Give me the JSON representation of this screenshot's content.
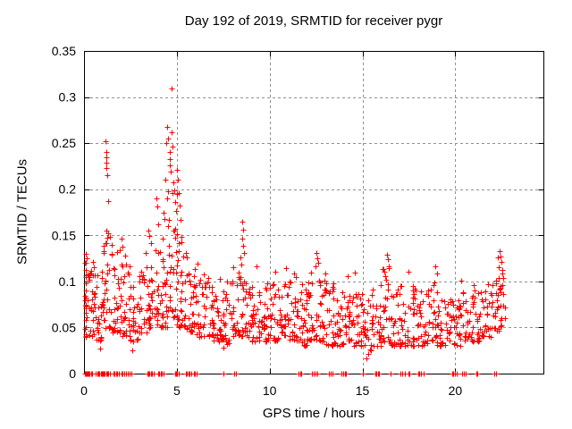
{
  "chart_data": {
    "type": "scatter",
    "title": "Day 192 of 2019, SRMTID for receiver pygr",
    "xlabel": "GPS time / hours",
    "ylabel": "SRMTID / TECUs",
    "xlim": [
      0,
      24.75
    ],
    "ylim": [
      0,
      0.35
    ],
    "xtick_values": [
      0,
      5,
      10,
      15,
      20
    ],
    "xtick_labels": [
      "0",
      "5",
      "10",
      "15",
      "20"
    ],
    "ytick_values": [
      0,
      0.05,
      0.1,
      0.15,
      0.2,
      0.25,
      0.3,
      0.35
    ],
    "ytick_labels": [
      "0",
      "0.05",
      "0.1",
      "0.15",
      "0.2",
      "0.25",
      "0.3",
      "0.35"
    ],
    "grid": {
      "show": true,
      "style": "dashed",
      "color": "#909090"
    },
    "axis_color": "#000000",
    "marker": {
      "shape": "plus",
      "color": "#ff0000",
      "size": 7
    },
    "series_name": "SRMTID",
    "feature_points": [
      [
        0.08,
        0.075
      ],
      [
        0.1,
        0.13
      ],
      [
        0.1,
        0.12
      ],
      [
        0.1,
        0.112
      ],
      [
        0.1,
        0.105
      ],
      [
        0.1,
        0.098
      ],
      [
        0.1,
        0.09
      ],
      [
        0.1,
        0.082
      ],
      [
        0.1,
        0.074
      ],
      [
        0.1,
        0.066
      ],
      [
        0.1,
        0.058
      ],
      [
        0.1,
        0.05
      ],
      [
        0.1,
        0.043
      ],
      [
        0.15,
        0.125
      ],
      [
        0.2,
        0.108
      ],
      [
        0.3,
        0.102
      ],
      [
        0.5,
        0.121
      ],
      [
        0.55,
        0.115
      ],
      [
        0.85,
        0.027
      ],
      [
        1.15,
        0.252
      ],
      [
        1.18,
        0.24
      ],
      [
        1.2,
        0.235
      ],
      [
        1.2,
        0.229
      ],
      [
        1.22,
        0.223
      ],
      [
        1.25,
        0.215
      ],
      [
        1.3,
        0.187
      ],
      [
        1.2,
        0.155
      ],
      [
        1.3,
        0.152
      ],
      [
        1.4,
        0.148
      ],
      [
        1.5,
        0.14
      ],
      [
        2.0,
        0.146
      ],
      [
        2.05,
        0.138
      ],
      [
        2.2,
        0.128
      ],
      [
        2.6,
        0.025
      ],
      [
        3.3,
        0.131
      ],
      [
        3.45,
        0.155
      ],
      [
        3.5,
        0.149
      ],
      [
        3.6,
        0.142
      ],
      [
        3.9,
        0.19
      ],
      [
        3.95,
        0.181
      ],
      [
        4.0,
        0.162
      ],
      [
        4.3,
        0.175
      ],
      [
        4.35,
        0.168
      ],
      [
        4.4,
        0.21
      ],
      [
        4.45,
        0.25
      ],
      [
        4.5,
        0.268
      ],
      [
        4.5,
        0.19
      ],
      [
        4.55,
        0.255
      ],
      [
        4.55,
        0.16
      ],
      [
        4.6,
        0.24
      ],
      [
        4.6,
        0.233
      ],
      [
        4.62,
        0.226
      ],
      [
        4.65,
        0.219
      ],
      [
        4.7,
        0.309
      ],
      [
        4.72,
        0.262
      ],
      [
        4.75,
        0.246
      ],
      [
        4.8,
        0.207
      ],
      [
        4.8,
        0.155
      ],
      [
        4.85,
        0.199
      ],
      [
        4.9,
        0.186
      ],
      [
        4.95,
        0.176
      ],
      [
        5.0,
        0.221
      ],
      [
        5.0,
        0.151
      ],
      [
        5.05,
        0.21
      ],
      [
        5.1,
        0.196
      ],
      [
        5.15,
        0.182
      ],
      [
        5.2,
        0.167
      ],
      [
        5.25,
        0.143
      ],
      [
        5.5,
        0.131
      ],
      [
        5.55,
        0.126
      ],
      [
        6.1,
        0.119
      ],
      [
        7.5,
        0.028
      ],
      [
        8.45,
        0.126
      ],
      [
        8.5,
        0.165
      ],
      [
        8.5,
        0.146
      ],
      [
        8.55,
        0.156
      ],
      [
        8.55,
        0.139
      ],
      [
        8.6,
        0.131
      ],
      [
        9.3,
        0.116
      ],
      [
        10.3,
        0.111
      ],
      [
        10.9,
        0.114
      ],
      [
        11.3,
        0.109
      ],
      [
        12.45,
        0.116
      ],
      [
        12.5,
        0.131
      ],
      [
        12.55,
        0.125
      ],
      [
        12.6,
        0.12
      ],
      [
        13.0,
        0.109
      ],
      [
        14.2,
        0.106
      ],
      [
        14.6,
        0.11
      ],
      [
        15.2,
        0.016
      ],
      [
        15.3,
        0.021
      ],
      [
        16.2,
        0.111
      ],
      [
        16.3,
        0.129
      ],
      [
        16.35,
        0.124
      ],
      [
        16.4,
        0.116
      ],
      [
        17.5,
        0.111
      ],
      [
        18.9,
        0.116
      ],
      [
        19.0,
        0.109
      ],
      [
        20.3,
        0.101
      ],
      [
        21.0,
        0.096
      ],
      [
        22.3,
        0.126
      ],
      [
        22.35,
        0.115
      ],
      [
        22.4,
        0.133
      ],
      [
        22.45,
        0.127
      ],
      [
        22.5,
        0.121
      ],
      [
        22.55,
        0.112
      ],
      [
        22.6,
        0.104
      ]
    ],
    "zero_xs": [
      0.05,
      0.08,
      0.1,
      0.13,
      0.16,
      0.2,
      0.25,
      0.3,
      0.38,
      0.45,
      0.65,
      0.7,
      0.75,
      0.82,
      0.9,
      0.95,
      1.0,
      1.05,
      1.1,
      1.18,
      1.25,
      1.3,
      1.38,
      1.6,
      1.65,
      1.72,
      1.8,
      1.9,
      2.0,
      2.08,
      2.15,
      2.25,
      2.35,
      2.45,
      2.55,
      3.4,
      3.45,
      3.52,
      3.6,
      3.68,
      3.75,
      4.0,
      4.05,
      4.12,
      4.2,
      4.28,
      4.9,
      4.95,
      5.02,
      5.1,
      5.5,
      5.55,
      5.62,
      5.7,
      5.8,
      5.9,
      5.98,
      6.05,
      7.5,
      8.1,
      8.17,
      11.58,
      11.65,
      11.72,
      12.3,
      12.38,
      12.45,
      12.55,
      13.2,
      13.28,
      13.4,
      13.88,
      13.95,
      14.05,
      14.12,
      15.0,
      15.68,
      15.75,
      15.82,
      15.9,
      16.5,
      17.05,
      17.12,
      17.3,
      17.48,
      17.55,
      18.0,
      18.08,
      18.15,
      18.3,
      19.82,
      19.9,
      19.98,
      20.08,
      20.38,
      20.45,
      20.55,
      21.12,
      21.2,
      22.12,
      22.2
    ],
    "cloud_bands": [
      [
        0.0,
        0.5,
        0.04,
        0.13,
        30
      ],
      [
        0.5,
        1.0,
        0.035,
        0.115,
        30
      ],
      [
        1.0,
        1.5,
        0.048,
        0.15,
        32
      ],
      [
        1.5,
        2.0,
        0.045,
        0.135,
        30
      ],
      [
        2.0,
        2.5,
        0.04,
        0.125,
        28
      ],
      [
        2.5,
        3.0,
        0.035,
        0.1,
        26
      ],
      [
        3.0,
        3.5,
        0.045,
        0.13,
        28
      ],
      [
        3.5,
        4.0,
        0.05,
        0.15,
        28
      ],
      [
        4.0,
        4.5,
        0.05,
        0.17,
        30
      ],
      [
        4.5,
        5.0,
        0.058,
        0.2,
        30
      ],
      [
        5.0,
        5.5,
        0.05,
        0.16,
        28
      ],
      [
        5.5,
        6.0,
        0.045,
        0.125,
        28
      ],
      [
        6.0,
        6.5,
        0.04,
        0.11,
        26
      ],
      [
        6.5,
        7.0,
        0.04,
        0.105,
        26
      ],
      [
        7.0,
        7.5,
        0.035,
        0.11,
        26
      ],
      [
        7.5,
        8.0,
        0.032,
        0.1,
        26
      ],
      [
        8.0,
        8.5,
        0.04,
        0.12,
        28
      ],
      [
        8.5,
        9.0,
        0.04,
        0.11,
        26
      ],
      [
        9.0,
        9.5,
        0.035,
        0.105,
        26
      ],
      [
        9.5,
        10.0,
        0.035,
        0.1,
        26
      ],
      [
        10.0,
        10.5,
        0.035,
        0.105,
        26
      ],
      [
        10.5,
        11.0,
        0.038,
        0.1,
        26
      ],
      [
        11.0,
        11.5,
        0.035,
        0.105,
        26
      ],
      [
        11.5,
        12.0,
        0.03,
        0.1,
        26
      ],
      [
        12.0,
        12.5,
        0.035,
        0.11,
        28
      ],
      [
        12.5,
        13.0,
        0.035,
        0.105,
        26
      ],
      [
        13.0,
        13.5,
        0.03,
        0.1,
        26
      ],
      [
        13.5,
        14.0,
        0.03,
        0.095,
        24
      ],
      [
        14.0,
        14.5,
        0.035,
        0.1,
        26
      ],
      [
        14.5,
        15.0,
        0.03,
        0.095,
        24
      ],
      [
        15.0,
        15.5,
        0.025,
        0.09,
        22
      ],
      [
        15.5,
        16.0,
        0.03,
        0.1,
        24
      ],
      [
        16.0,
        16.5,
        0.035,
        0.115,
        26
      ],
      [
        16.5,
        17.0,
        0.03,
        0.1,
        24
      ],
      [
        17.0,
        17.5,
        0.03,
        0.1,
        24
      ],
      [
        17.5,
        18.0,
        0.03,
        0.095,
        24
      ],
      [
        18.0,
        18.5,
        0.03,
        0.09,
        24
      ],
      [
        18.5,
        19.0,
        0.035,
        0.1,
        24
      ],
      [
        19.0,
        19.5,
        0.03,
        0.09,
        24
      ],
      [
        19.5,
        20.0,
        0.03,
        0.085,
        22
      ],
      [
        20.0,
        20.5,
        0.03,
        0.09,
        24
      ],
      [
        20.5,
        21.0,
        0.035,
        0.09,
        24
      ],
      [
        21.0,
        21.5,
        0.035,
        0.095,
        24
      ],
      [
        21.5,
        22.0,
        0.04,
        0.1,
        24
      ],
      [
        22.0,
        22.4,
        0.045,
        0.11,
        20
      ],
      [
        22.4,
        22.7,
        0.05,
        0.13,
        14
      ]
    ]
  }
}
